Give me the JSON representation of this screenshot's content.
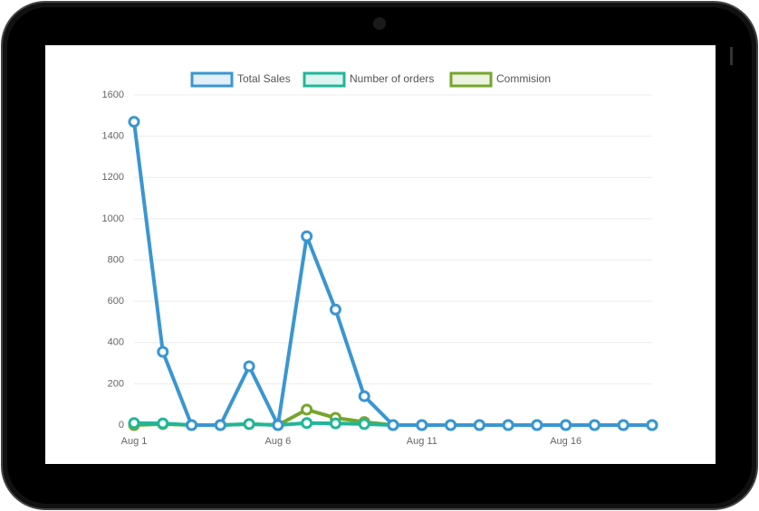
{
  "chart_data": {
    "type": "line",
    "categories": [
      "Aug 1",
      null,
      null,
      null,
      null,
      "Aug 6",
      null,
      null,
      null,
      null,
      "Aug 11",
      null,
      null,
      null,
      null,
      "Aug 16",
      null,
      null,
      null
    ],
    "series": [
      {
        "name": "Total Sales",
        "color": "#3a96d2",
        "values": [
          1470,
          355,
          0,
          0,
          285,
          0,
          915,
          560,
          140,
          0,
          0,
          0,
          0,
          0,
          0,
          0,
          0,
          0,
          0
        ]
      },
      {
        "name": "Number of orders",
        "color": "#20b797",
        "values": [
          10,
          8,
          0,
          0,
          5,
          0,
          10,
          8,
          5,
          0,
          0,
          0,
          0,
          0,
          0,
          0,
          0,
          0,
          0
        ]
      },
      {
        "name": "Commision",
        "color": "#76a52d",
        "values": [
          0,
          5,
          0,
          0,
          5,
          0,
          75,
          35,
          15,
          0,
          0,
          0,
          0,
          0,
          0,
          0,
          0,
          0,
          0
        ]
      }
    ],
    "ylim": [
      0,
      1600
    ],
    "yticks": [
      0,
      200,
      400,
      600,
      800,
      1000,
      1200,
      1400,
      1600
    ],
    "grid": true
  }
}
